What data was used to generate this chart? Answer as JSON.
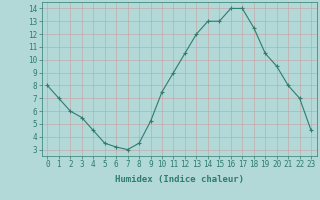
{
  "x": [
    0,
    1,
    2,
    3,
    4,
    5,
    6,
    7,
    8,
    9,
    10,
    11,
    12,
    13,
    14,
    15,
    16,
    17,
    18,
    19,
    20,
    21,
    22,
    23
  ],
  "y": [
    8.0,
    7.0,
    6.0,
    5.5,
    4.5,
    3.5,
    3.2,
    3.0,
    3.5,
    5.2,
    7.5,
    9.0,
    10.5,
    12.0,
    13.0,
    13.0,
    14.0,
    14.0,
    12.5,
    10.5,
    9.5,
    8.0,
    7.0,
    4.5
  ],
  "xlabel": "Humidex (Indice chaleur)",
  "ylim": [
    2.5,
    14.5
  ],
  "xlim": [
    -0.5,
    23.5
  ],
  "yticks": [
    3,
    4,
    5,
    6,
    7,
    8,
    9,
    10,
    11,
    12,
    13,
    14
  ],
  "xtick_labels": [
    "0",
    "1",
    "2",
    "3",
    "4",
    "5",
    "6",
    "7",
    "8",
    "9",
    "10",
    "11",
    "12",
    "13",
    "14",
    "15",
    "16",
    "17",
    "18",
    "19",
    "20",
    "21",
    "22",
    "23"
  ],
  "line_color": "#2e7d6e",
  "marker": "+",
  "bg_color": "#b2d8d8",
  "grid_color": "#d4eded",
  "tick_color": "#2e7d6e",
  "label_fontsize": 5.5,
  "xlabel_fontsize": 6.5
}
